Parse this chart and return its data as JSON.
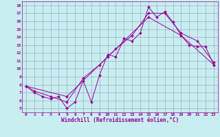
{
  "xlabel": "Windchill (Refroidissement éolien,°C)",
  "background_color": "#c8eef0",
  "grid_color": "#9999bb",
  "line_color": "#990099",
  "xlim": [
    -0.5,
    23.5
  ],
  "ylim": [
    4.5,
    18.5
  ],
  "xticks": [
    0,
    1,
    2,
    3,
    4,
    5,
    6,
    7,
    8,
    9,
    10,
    11,
    12,
    13,
    14,
    15,
    16,
    17,
    18,
    19,
    20,
    21,
    22,
    23
  ],
  "yticks": [
    5,
    6,
    7,
    8,
    9,
    10,
    11,
    12,
    13,
    14,
    15,
    16,
    17,
    18
  ],
  "line1_x": [
    0,
    1,
    2,
    3,
    4,
    5,
    6,
    7,
    8,
    9,
    10,
    11,
    12,
    13,
    14,
    15,
    16,
    17,
    18,
    19,
    20,
    21,
    22,
    23
  ],
  "line1_y": [
    7.8,
    7.0,
    6.5,
    6.2,
    6.5,
    5.0,
    5.8,
    8.5,
    5.8,
    9.2,
    11.8,
    11.5,
    13.8,
    13.5,
    14.5,
    17.8,
    16.5,
    17.2,
    15.9,
    14.2,
    13.0,
    12.8,
    12.8,
    10.5
  ],
  "line2_x": [
    0,
    1,
    3,
    5,
    7,
    9,
    11,
    13,
    15,
    17,
    19,
    21,
    23
  ],
  "line2_y": [
    7.8,
    7.2,
    6.5,
    5.8,
    8.8,
    10.5,
    12.5,
    14.2,
    17.0,
    17.0,
    14.5,
    13.5,
    10.8
  ],
  "line3_x": [
    0,
    5,
    10,
    15,
    19,
    23
  ],
  "line3_y": [
    7.8,
    6.5,
    11.5,
    16.5,
    14.2,
    10.5
  ]
}
